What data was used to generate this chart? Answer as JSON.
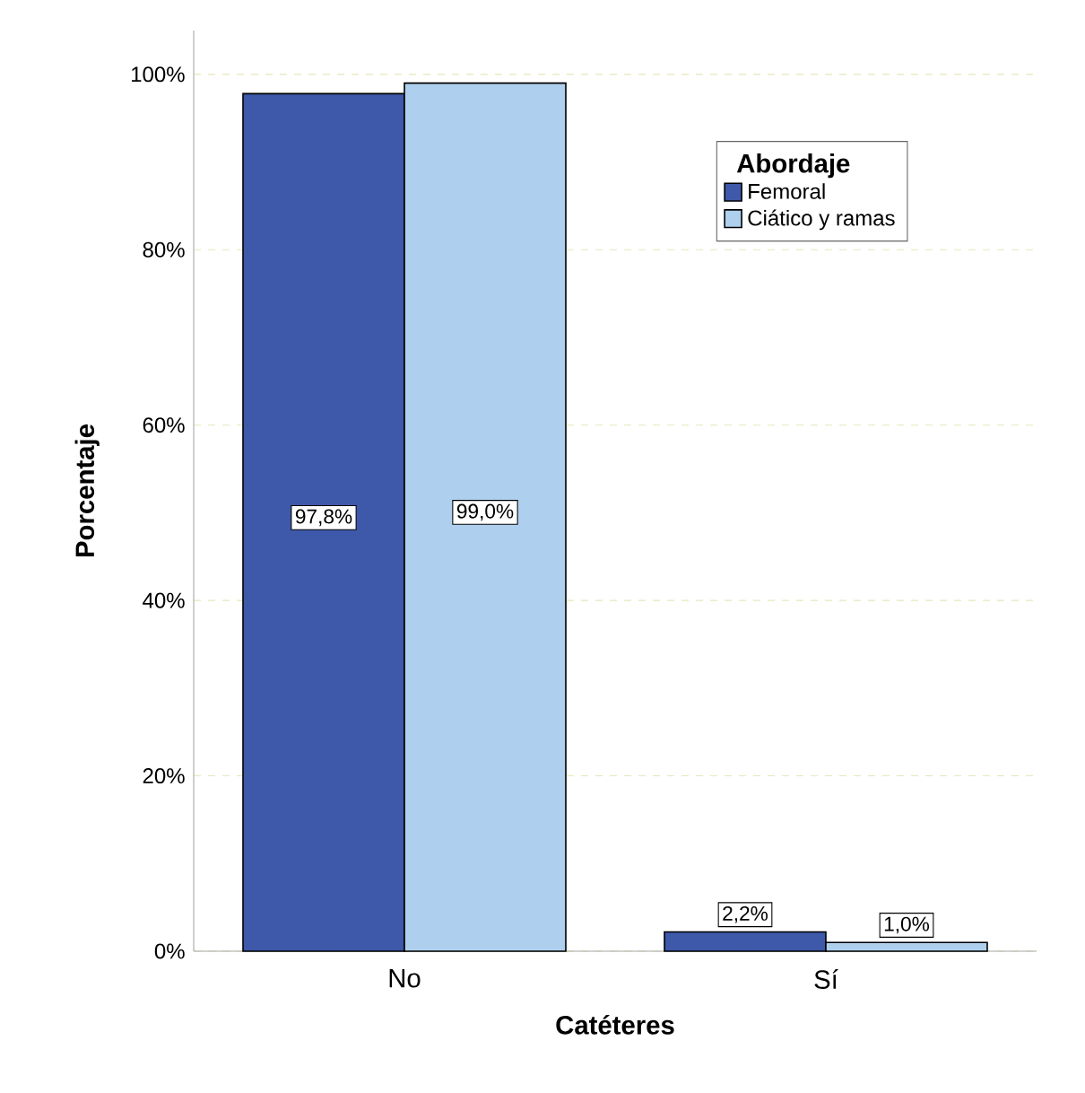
{
  "chart_data": {
    "type": "bar",
    "xlabel": "Catéteres",
    "ylabel": "Porcentaje",
    "legend_title": "Abordaje",
    "categories": [
      "No",
      "Sí"
    ],
    "series": [
      {
        "name": "Femoral",
        "color": "#3e58aa",
        "values": [
          97.8,
          2.2
        ],
        "value_labels": [
          "97,8%",
          "2,2%"
        ]
      },
      {
        "name": "Ciático y ramas",
        "color": "#aed0ee",
        "values": [
          99.0,
          1.0
        ],
        "value_labels": [
          "99,0%",
          "1,0%"
        ]
      }
    ],
    "ylim": [
      0,
      105
    ],
    "yticks": [
      {
        "value": 0,
        "label": "0%"
      },
      {
        "value": 20,
        "label": "20%"
      },
      {
        "value": 40,
        "label": "40%"
      },
      {
        "value": 60,
        "label": "60%"
      },
      {
        "value": 80,
        "label": "80%"
      },
      {
        "value": 100,
        "label": "100%"
      }
    ],
    "grid": "y",
    "legend": "top right"
  }
}
